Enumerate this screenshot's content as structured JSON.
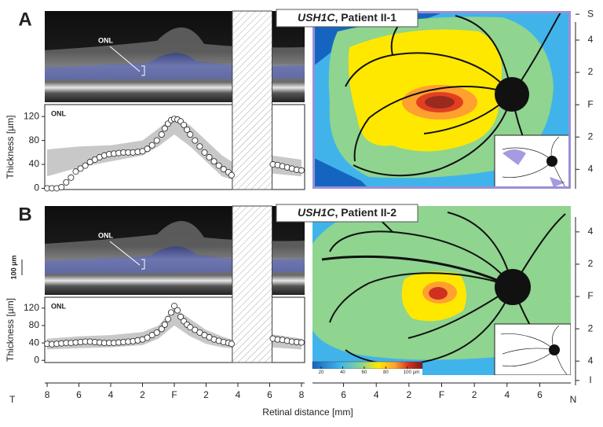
{
  "panels": [
    {
      "letter": "A",
      "gene": "USH1C",
      "title_rest": ", Patient II-1",
      "oct_label": "ONL"
    },
    {
      "letter": "B",
      "gene": "USH1C",
      "title_rest": ", Patient II-2",
      "oct_label": "ONL"
    }
  ],
  "scale_bar": "100 µm",
  "x_axis_label": "Retinal distance [mm]",
  "t_label": "T",
  "n_label": "N",
  "chart_data": [
    {
      "type": "scatter",
      "annotation": "ONL",
      "ylabel": "Thickness [µm]",
      "xlim": [
        -8.15,
        8.2
      ],
      "ylim": [
        -2,
        140
      ],
      "yticks": [
        0,
        40,
        80,
        120
      ],
      "masked_x": [
        3.65,
        6.15
      ],
      "x": [
        -8,
        -7.7,
        -7.4,
        -7.1,
        -6.8,
        -6.5,
        -6.2,
        -5.9,
        -5.6,
        -5.3,
        -5.0,
        -4.7,
        -4.4,
        -4.1,
        -3.8,
        -3.5,
        -3.2,
        -2.9,
        -2.6,
        -2.3,
        -2.0,
        -1.7,
        -1.4,
        -1.1,
        -0.8,
        -0.6,
        -0.4,
        -0.2,
        0,
        0.2,
        0.4,
        0.6,
        0.8,
        1.0,
        1.3,
        1.6,
        1.9,
        2.2,
        2.5,
        2.8,
        3.1,
        3.4,
        3.6,
        6.2,
        6.5,
        6.8,
        7.1,
        7.4,
        7.7,
        8.0
      ],
      "values": [
        0,
        0,
        0,
        2,
        10,
        18,
        28,
        33,
        38,
        44,
        48,
        52,
        55,
        57,
        58,
        59,
        60,
        60,
        60,
        61,
        62,
        66,
        72,
        80,
        90,
        100,
        108,
        114,
        116,
        115,
        112,
        106,
        98,
        90,
        80,
        70,
        60,
        52,
        45,
        38,
        32,
        27,
        22,
        40,
        39,
        37,
        35,
        33,
        31,
        30
      ],
      "band": {
        "color": "#c8c8c8",
        "x": [
          -8,
          -6,
          -4,
          -2,
          -1,
          0,
          1,
          2,
          3,
          3.6,
          6.1,
          8
        ],
        "lower": [
          20,
          35,
          45,
          55,
          70,
          90,
          70,
          45,
          20,
          15,
          25,
          20
        ],
        "upper": [
          65,
          70,
          72,
          80,
          100,
          120,
          105,
          80,
          55,
          45,
          55,
          48
        ]
      }
    },
    {
      "type": "scatter",
      "annotation": "ONL",
      "ylabel": "Thickness [µm]",
      "xlim": [
        -8.15,
        8.2
      ],
      "ylim": [
        -5,
        145
      ],
      "yticks": [
        0,
        40,
        80,
        120
      ],
      "masked_x": [
        3.65,
        6.15
      ],
      "xticks": [
        {
          "value": -8,
          "label": "8"
        },
        {
          "value": -6,
          "label": "6"
        },
        {
          "value": -4,
          "label": "4"
        },
        {
          "value": -2,
          "label": "2"
        },
        {
          "value": 0,
          "label": "F"
        },
        {
          "value": 2,
          "label": "2"
        },
        {
          "value": 4,
          "label": "4"
        },
        {
          "value": 6,
          "label": "6"
        },
        {
          "value": 8,
          "label": "8"
        }
      ],
      "x": [
        -8,
        -7.7,
        -7.4,
        -7.1,
        -6.8,
        -6.5,
        -6.2,
        -5.9,
        -5.6,
        -5.3,
        -5.0,
        -4.7,
        -4.4,
        -4.1,
        -3.8,
        -3.5,
        -3.2,
        -2.9,
        -2.6,
        -2.3,
        -2.0,
        -1.7,
        -1.4,
        -1.1,
        -0.8,
        -0.6,
        -0.4,
        -0.2,
        0,
        0.2,
        0.4,
        0.6,
        0.8,
        1.0,
        1.3,
        1.6,
        1.9,
        2.2,
        2.5,
        2.8,
        3.1,
        3.4,
        3.6,
        6.2,
        6.5,
        6.8,
        7.1,
        7.4,
        7.7,
        8.0
      ],
      "values": [
        38,
        37,
        38,
        39,
        40,
        40,
        41,
        42,
        43,
        43,
        42,
        41,
        40,
        40,
        40,
        41,
        42,
        43,
        44,
        46,
        48,
        52,
        58,
        64,
        72,
        82,
        95,
        110,
        125,
        115,
        100,
        90,
        82,
        76,
        70,
        64,
        58,
        53,
        48,
        45,
        42,
        40,
        38,
        50,
        48,
        47,
        45,
        43,
        42,
        41
      ],
      "band": {
        "color": "#c8c8c8",
        "x": [
          -8,
          -6,
          -4,
          -2,
          -1,
          0,
          1,
          2,
          3,
          3.6,
          6.1,
          8
        ],
        "lower": [
          25,
          28,
          30,
          35,
          50,
          80,
          55,
          38,
          30,
          28,
          30,
          25
        ],
        "upper": [
          50,
          55,
          58,
          65,
          80,
          120,
          95,
          70,
          55,
          48,
          60,
          50
        ]
      }
    }
  ],
  "maps": [
    {
      "ylim": [
        -5.2,
        5.8
      ],
      "yticks": [
        {
          "value": 5.6,
          "label": "S"
        },
        {
          "value": 4,
          "label": "4"
        },
        {
          "value": 2,
          "label": "2"
        },
        {
          "value": 0,
          "label": "F"
        },
        {
          "value": -2,
          "label": "2"
        },
        {
          "value": -4,
          "label": "4"
        }
      ]
    },
    {
      "ylim": [
        -5.5,
        5.6
      ],
      "yticks": [
        {
          "value": 4,
          "label": "4"
        },
        {
          "value": 2,
          "label": "2"
        },
        {
          "value": 0,
          "label": "F"
        },
        {
          "value": -2,
          "label": "2"
        },
        {
          "value": -4,
          "label": "4"
        },
        {
          "value": -5.2,
          "label": "I"
        }
      ],
      "xlim": [
        -7.9,
        7.9
      ],
      "xticks": [
        {
          "value": -6,
          "label": "6"
        },
        {
          "value": -4,
          "label": "4"
        },
        {
          "value": -2,
          "label": "2"
        },
        {
          "value": 0,
          "label": "F"
        },
        {
          "value": 2,
          "label": "2"
        },
        {
          "value": 4,
          "label": "4"
        },
        {
          "value": 6,
          "label": "6"
        }
      ],
      "colorbar": {
        "clim": [
          12,
          114
        ],
        "ticks": [
          20,
          40,
          60,
          80,
          100
        ],
        "unit": "µm"
      }
    }
  ]
}
